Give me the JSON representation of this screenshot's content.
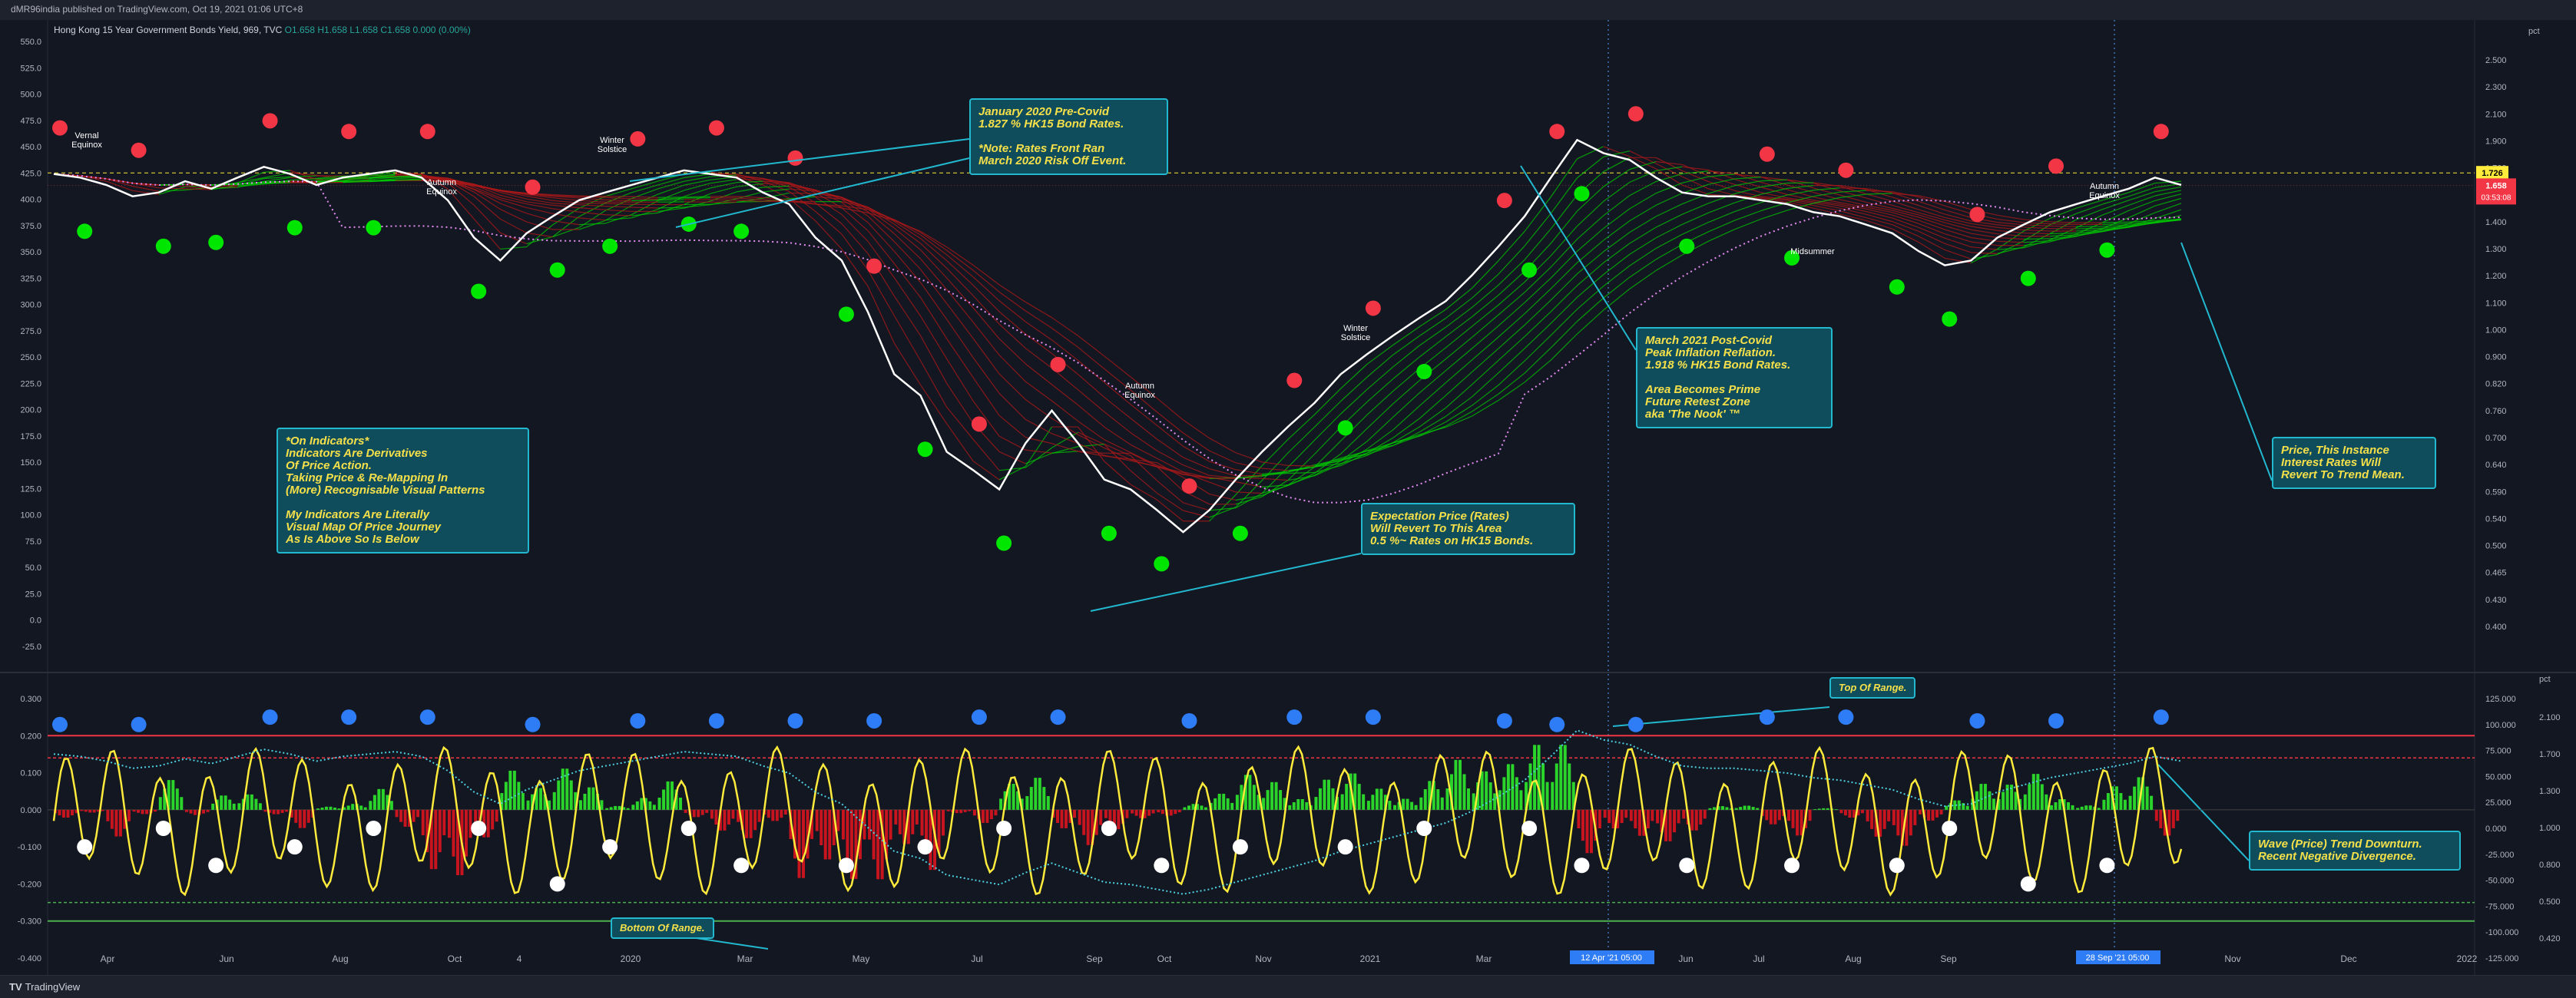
{
  "header": {
    "published": "dMR96india published on TradingView.com, Oct 19, 2021 01:06 UTC+8",
    "symbol": "Hong Kong 15 Year Government Bonds Yield, 969, TVC",
    "ohlc": "O1.658 H1.658 L1.658 C1.658 0.000 (0.00%)"
  },
  "footer": {
    "brand": "TV",
    "brand_name": "TradingView"
  },
  "colors": {
    "bg": "#131722",
    "price": "#ffffff",
    "red": "#f23645",
    "green": "#00e600",
    "pink": "#e58bf2",
    "yellow": "#ffeb3b",
    "blue": "#2e7cf6",
    "cyan": "#22b8cf"
  },
  "annotations": {
    "jan2020": "January 2020 Pre-Covid\n1.827 % HK15 Bond Rates.\n\n*Note: Rates Front Ran\nMarch 2020 Risk Off Event.",
    "indicators": "*On Indicators*\nIndicators Are Derivatives\nOf Price Action.\nTaking Price & Re-Mapping In\n(More) Recognisable Visual Patterns\n\nMy Indicators Are Literally\nVisual Map Of Price Journey\nAs Is Above So Is Below",
    "expectation": "Expectation Price (Rates)\nWill Revert To This Area\n0.5 %~ Rates on HK15 Bonds.",
    "march2021": "March 2021 Post-Covid\nPeak Inflation Reflation.\n1.918 % HK15 Bond Rates.\n\nArea Becomes Prime\nFuture Retest Zone\naka 'The Nook' ™",
    "revert": "Price, This Instance\nInterest Rates Will\nRevert To Trend Mean.",
    "top_range": "Top Of Range.",
    "bottom_range": "Bottom Of Range.",
    "wave": "Wave (Price) Trend Downturn.\nRecent Negative Divergence."
  },
  "chart_labels": {
    "vernal": "Vernal\nEquinox",
    "autumn1": "Autumn\nEquinox",
    "winter1": "Winter\nSolstice",
    "autumn2": "Autumn\nEquinox",
    "winter2": "Winter\nSolstice",
    "midsummer": "Midsummer",
    "autumn3": "Autumn\nEquinox"
  },
  "badges": {
    "level": "1.726",
    "price": "1.658",
    "countdown": "03:53:08"
  },
  "chart_data": {
    "type": "line",
    "x_ticks": [
      "Apr",
      "Jun",
      "Aug",
      "Oct",
      "4",
      "2020",
      "Mar",
      "May",
      "Jul",
      "Sep",
      "Oct",
      "Nov",
      "2021",
      "Mar",
      "12 Apr '21   05:00",
      "Jun",
      "Jul",
      "Aug",
      "Sep",
      "28 Sep '21   05:00",
      "Nov",
      "Dec",
      "2022"
    ],
    "left_axis_top": [
      "550.0",
      "525.0",
      "500.0",
      "475.0",
      "450.0",
      "425.0",
      "400.0",
      "375.0",
      "350.0",
      "325.0",
      "300.0",
      "275.0",
      "250.0",
      "225.0",
      "200.0",
      "175.0",
      "150.0",
      "125.0",
      "100.0",
      "75.0",
      "50.0",
      "25.0",
      "0.0",
      "-25.0"
    ],
    "right_axis_top": [
      "2.500",
      "2.300",
      "2.100",
      "1.900",
      "1.700",
      "1.550",
      "1.400",
      "1.300",
      "1.200",
      "1.100",
      "1.000",
      "0.900",
      "0.820",
      "0.760",
      "0.700",
      "0.640",
      "0.590",
      "0.540",
      "0.500",
      "0.465",
      "0.430",
      "0.400"
    ],
    "right_axis_top_unit": "pct",
    "left_axis_bottom": [
      "0.300",
      "0.200",
      "0.100",
      "0.000",
      "-0.100",
      "-0.200",
      "-0.300",
      "-0.400"
    ],
    "right_axis_bottom": [
      "125.000",
      "100.000",
      "75.000",
      "50.000",
      "25.000",
      "0.000",
      "-25.000",
      "-50.000",
      "-75.000",
      "-100.000",
      "-125.000"
    ],
    "right_axis_bottom2": [
      "2.100",
      "1.700",
      "1.300",
      "1.000",
      "0.800",
      "0.500",
      "0.420"
    ],
    "right_axis_bottom_unit": "pct",
    "yield_series": [
      1.72,
      1.7,
      1.66,
      1.6,
      1.62,
      1.68,
      1.64,
      1.7,
      1.76,
      1.72,
      1.66,
      1.7,
      1.72,
      1.74,
      1.7,
      1.58,
      1.4,
      1.3,
      1.42,
      1.5,
      1.58,
      1.62,
      1.66,
      1.7,
      1.74,
      1.72,
      1.7,
      1.62,
      1.56,
      1.4,
      1.3,
      1.1,
      0.9,
      0.84,
      0.7,
      0.66,
      0.62,
      0.72,
      0.8,
      0.72,
      0.64,
      0.62,
      0.58,
      0.54,
      0.58,
      0.64,
      0.7,
      0.76,
      0.82,
      0.9,
      0.96,
      1.02,
      1.08,
      1.14,
      1.24,
      1.36,
      1.5,
      1.7,
      1.92,
      1.84,
      1.8,
      1.7,
      1.62,
      1.6,
      1.6,
      1.58,
      1.56,
      1.52,
      1.5,
      1.46,
      1.42,
      1.34,
      1.28,
      1.3,
      1.4,
      1.46,
      1.52,
      1.56,
      1.6,
      1.64,
      1.7,
      1.66
    ],
    "oscillator_lines": {
      "top": 0.2,
      "upper": 0.14,
      "lower": -0.25,
      "bottom": -0.3
    }
  }
}
